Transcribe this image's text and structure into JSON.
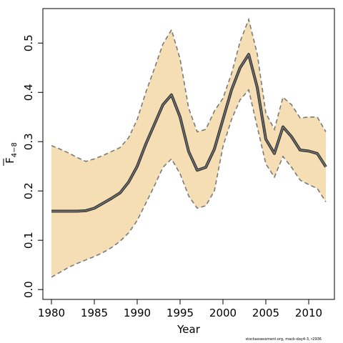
{
  "chart_data": {
    "type": "line",
    "xlabel": "Year",
    "ylabel": {
      "main": "F",
      "subscript": "4−8"
    },
    "xlim": [
      1979,
      2013
    ],
    "ylim": [
      -0.02,
      0.57
    ],
    "x_ticks": [
      1980,
      1985,
      1990,
      1995,
      2000,
      2005,
      2010
    ],
    "y_ticks": [
      "0.0",
      "0.1",
      "0.2",
      "0.3",
      "0.4",
      "0.5"
    ],
    "grid": false,
    "legend": "none",
    "colors": {
      "band_fill": "#f5deb3",
      "estimate_line": "#3a3a3a",
      "estimate_inner": "#8a8a8a",
      "bound_lines": "#7a7a7a",
      "axis": "#000000"
    },
    "series": [
      {
        "role": "estimate",
        "x": [
          1980,
          1981,
          1982,
          1983,
          1984,
          1985,
          1986,
          1987,
          1988,
          1989,
          1990,
          1991,
          1992,
          1993,
          1994,
          1995,
          1996,
          1997,
          1998,
          1999,
          2000,
          2001,
          2002,
          2003,
          2004,
          2005,
          2006,
          2007,
          2008,
          2009,
          2010,
          2011,
          2012
        ],
        "values": [
          0.159,
          0.159,
          0.159,
          0.159,
          0.16,
          0.165,
          0.175,
          0.185,
          0.196,
          0.218,
          0.25,
          0.295,
          0.335,
          0.375,
          0.395,
          0.35,
          0.28,
          0.242,
          0.248,
          0.285,
          0.345,
          0.405,
          0.45,
          0.477,
          0.41,
          0.305,
          0.276,
          0.33,
          0.31,
          0.283,
          0.281,
          0.276,
          0.249
        ]
      },
      {
        "role": "upper",
        "x": [
          1980,
          1981,
          1982,
          1983,
          1984,
          1985,
          1986,
          1987,
          1988,
          1989,
          1990,
          1991,
          1992,
          1993,
          1994,
          1995,
          1996,
          1997,
          1998,
          1999,
          2000,
          2001,
          2002,
          2003,
          2004,
          2005,
          2006,
          2007,
          2008,
          2009,
          2010,
          2011,
          2012
        ],
        "values": [
          0.292,
          0.285,
          0.277,
          0.268,
          0.26,
          0.265,
          0.272,
          0.28,
          0.288,
          0.308,
          0.345,
          0.4,
          0.448,
          0.498,
          0.527,
          0.468,
          0.368,
          0.32,
          0.325,
          0.362,
          0.388,
          0.438,
          0.503,
          0.548,
          0.478,
          0.358,
          0.325,
          0.39,
          0.375,
          0.348,
          0.35,
          0.35,
          0.32
        ]
      },
      {
        "role": "lower",
        "x": [
          1980,
          1981,
          1982,
          1983,
          1984,
          1985,
          1986,
          1987,
          1988,
          1989,
          1990,
          1991,
          1992,
          1993,
          1994,
          1995,
          1996,
          1997,
          1998,
          1999,
          2000,
          2001,
          2002,
          2003,
          2004,
          2005,
          2006,
          2007,
          2008,
          2009,
          2010,
          2011,
          2012
        ],
        "values": [
          0.025,
          0.035,
          0.045,
          0.053,
          0.06,
          0.067,
          0.075,
          0.085,
          0.098,
          0.115,
          0.14,
          0.175,
          0.21,
          0.248,
          0.265,
          0.235,
          0.19,
          0.165,
          0.17,
          0.2,
          0.29,
          0.345,
          0.385,
          0.405,
          0.33,
          0.255,
          0.228,
          0.27,
          0.248,
          0.222,
          0.213,
          0.205,
          0.178
        ]
      }
    ]
  },
  "footer": {
    "credit": "stockassessment.org, mack-day4-3, r2936"
  }
}
